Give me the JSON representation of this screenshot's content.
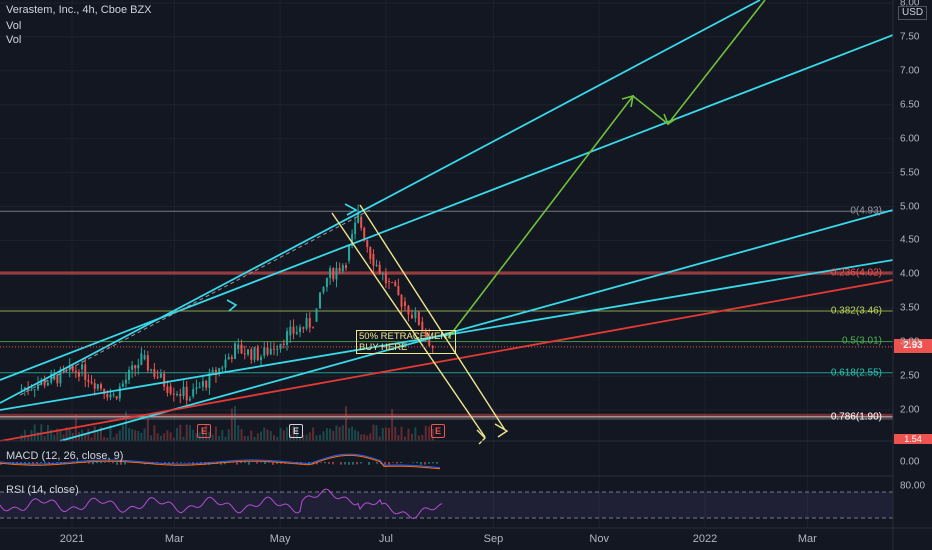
{
  "header": {
    "title": "Verastem, Inc., 4h, Cboe BZX",
    "vol1": "Vol",
    "vol2": "Vol"
  },
  "currency": "USD",
  "last_price": "2.93",
  "low_price": "1.54",
  "annotation": {
    "line1": "50% RETRACEMENT",
    "line2": "BUY HERE"
  },
  "indicators": {
    "macd_label": "MACD (12, 26, close, 9)",
    "rsi_label": "RSI (14, close)",
    "macd_tick": "0.00",
    "rsi_tick": "80.00"
  },
  "earnings": [
    "E",
    "E",
    "E"
  ],
  "fib_levels": [
    {
      "label": "0(4.93)",
      "value": 4.93,
      "color": "#9598a1"
    },
    {
      "label": "0.236(4.02)",
      "value": 4.02,
      "color": "#ef5350"
    },
    {
      "label": "0.382(3.46)",
      "value": 3.46,
      "color": "#b8d45a"
    },
    {
      "label": "0.5(3.01)",
      "value": 3.01,
      "color": "#4caf50"
    },
    {
      "label": "0.618(2.55)",
      "value": 2.55,
      "color": "#26c6b0"
    },
    {
      "label": "0.786(1.90)",
      "value": 1.9,
      "color": "#ffffff"
    }
  ],
  "colors": {
    "background": "#131722",
    "up": "#26a69a",
    "down": "#ef5350",
    "trendline": "#38d9e8",
    "support": "#e53935",
    "projection": "#6ec13c",
    "channel": "#f0e68c"
  },
  "chart_data": {
    "type": "line",
    "title": "Verastem, Inc., 4h, Cboe BZX",
    "ylabel": "USD",
    "yticks": [
      "8.00",
      "7.50",
      "7.00",
      "6.50",
      "6.00",
      "5.50",
      "5.00",
      "4.50",
      "4.00",
      "3.50",
      "3.00",
      "2.50",
      "2.00"
    ],
    "ylim": [
      1.54,
      8.0
    ],
    "xticks": [
      "2021",
      "Mar",
      "May",
      "Jul",
      "Sep",
      "Nov",
      "2022",
      "Mar"
    ],
    "series": [
      {
        "name": "Verastem, Inc., 4h, Cboe BZX",
        "x": [
          "2020-12-01",
          "2020-12-20",
          "2021-01-05",
          "2021-01-25",
          "2021-02-10",
          "2021-02-25",
          "2021-03-10",
          "2021-03-25",
          "2021-04-05",
          "2021-04-20",
          "2021-05-05",
          "2021-05-20",
          "2021-05-28",
          "2021-06-08",
          "2021-06-15",
          "2021-06-22",
          "2021-07-01",
          "2021-07-10",
          "2021-07-20",
          "2021-07-28"
        ],
        "values": [
          2.3,
          2.45,
          2.6,
          2.2,
          2.75,
          2.35,
          2.2,
          2.55,
          2.9,
          2.8,
          3.1,
          3.3,
          3.95,
          4.2,
          4.85,
          4.3,
          3.9,
          3.6,
          3.3,
          2.93
        ]
      }
    ]
  }
}
